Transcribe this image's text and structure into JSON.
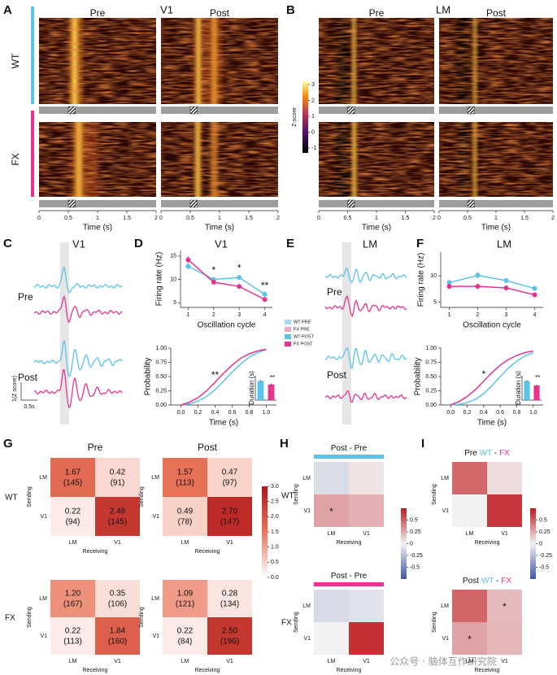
{
  "chart_data": [
    {
      "type": "raster",
      "label": "A",
      "title": "V1",
      "columns": [
        "Pre",
        "Post"
      ],
      "rows": [
        "WT",
        "FX"
      ],
      "row_colors": [
        "#5bc3e8",
        "#e8348f"
      ],
      "xlim": [
        0,
        2
      ],
      "xticks": [
        0,
        0.5,
        1,
        1.5,
        2
      ],
      "xlabel": "Time (s)",
      "colorbar": {
        "label": "Z-score",
        "lim": [
          -1.3,
          3.2
        ],
        "ticks": [
          3,
          2,
          1,
          0,
          -1
        ]
      }
    },
    {
      "type": "raster",
      "label": "B",
      "title": "LM",
      "columns": [
        "Pre",
        "Post"
      ],
      "xlim": [
        0,
        2
      ],
      "xticks": [
        0,
        0.5,
        1,
        1.5,
        2
      ],
      "xlabel": "Time (s)"
    },
    {
      "type": "traces",
      "label": "C",
      "title": "V1",
      "rows": [
        "Pre",
        "Post"
      ],
      "colors": [
        "#5bc3e8",
        "#e8348f"
      ],
      "scalebar": {
        "y_label": "1(Z score)",
        "x_label": "0.5s"
      }
    },
    {
      "type": "line",
      "label": "D",
      "title": "V1",
      "x": [
        1,
        2,
        3,
        4
      ],
      "xlim": [
        0.7,
        4.3
      ],
      "xticks": [
        1,
        2,
        3,
        4
      ],
      "ylim": [
        4,
        16.2
      ],
      "yticks": [
        5,
        10,
        15
      ],
      "xlabel": "Oscillation cycle",
      "ylabel": "Firing rate (Hz)",
      "markers": true,
      "series": [
        {
          "color": "#5bc3e8",
          "values": [
            12.8,
            10.0,
            10.4,
            6.8
          ],
          "errors": [
            0.6,
            0.5,
            0.5,
            0.4
          ]
        },
        {
          "color": "#e8348f",
          "values": [
            14.2,
            9.4,
            8.5,
            5.7
          ],
          "errors": [
            0.7,
            0.4,
            0.4,
            0.3
          ]
        }
      ],
      "annotations": [
        {
          "x": 2,
          "text": "*"
        },
        {
          "x": 3,
          "text": "*"
        },
        {
          "x": 4,
          "text": "**"
        }
      ]
    },
    {
      "type": "line",
      "x": [
        0,
        0.1,
        0.2,
        0.3,
        0.4,
        0.5,
        0.6,
        0.7,
        0.8,
        0.9,
        1
      ],
      "xlim": [
        -0.12,
        1.12
      ],
      "xticks": [
        {
          "value": 0,
          "label": "0.0"
        },
        0.2,
        0.4,
        0.6,
        0.8,
        {
          "value": 1,
          "label": "1.0"
        }
      ],
      "ylim": [
        0,
        1
      ],
      "yticks": [
        {
          "value": 0,
          "label": "0.00"
        },
        0.25,
        {
          "value": 0.5,
          "label": "0.50"
        },
        0.75,
        {
          "value": 1,
          "label": "1.00"
        }
      ],
      "xlabel": "Time (s)",
      "ylabel": "Probability",
      "series": [
        {
          "color": "#5bc3e8",
          "values": [
            0,
            0.02,
            0.07,
            0.15,
            0.27,
            0.42,
            0.58,
            0.72,
            0.84,
            0.92,
            0.97
          ]
        },
        {
          "color": "#e8348f",
          "values": [
            0,
            0.05,
            0.13,
            0.25,
            0.4,
            0.56,
            0.7,
            0.82,
            0.9,
            0.95,
            0.98
          ]
        }
      ],
      "annotations": [
        {
          "x": 0.4,
          "text": "**"
        }
      ],
      "inset": {
        "ylabel": "Duration (s)",
        "values": [
          0.55,
          0.45
        ],
        "errors": [
          0.03,
          0.03
        ],
        "colors": [
          "#5bc3e8",
          "#e8348f"
        ],
        "ylim": [
          0,
          0.7
        ],
        "annotation": "**"
      }
    },
    {
      "type": "legend",
      "entries": [
        {
          "name": "WT PRE",
          "color": "#a9def2"
        },
        {
          "name": "FX PRE",
          "color": "#f2a3cc"
        },
        {
          "name": "WT POST",
          "color": "#5bc3e8"
        },
        {
          "name": "FX POST",
          "color": "#e8348f"
        }
      ]
    },
    {
      "type": "traces",
      "label": "E",
      "title": "LM",
      "rows": [
        "Pre",
        "Post"
      ],
      "colors": [
        "#5bc3e8",
        "#e8348f"
      ]
    },
    {
      "type": "line",
      "label": "F",
      "title": "LM",
      "x": [
        1,
        2,
        3,
        4
      ],
      "xlim": [
        0.7,
        4.3
      ],
      "xticks": [
        1,
        2,
        3,
        4
      ],
      "ylim": [
        4,
        14.5
      ],
      "yticks": [
        5,
        10
      ],
      "xlabel": "Oscillation cycle",
      "ylabel": "Firing rate (Hz)",
      "markers": true,
      "series": [
        {
          "color": "#5bc3e8",
          "values": [
            8.7,
            10.1,
            9.1,
            7.6
          ],
          "errors": [
            0.6,
            0.6,
            0.5,
            0.4
          ]
        },
        {
          "color": "#e8348f",
          "values": [
            8.0,
            8.0,
            7.7,
            6.4
          ],
          "errors": [
            0.5,
            0.5,
            0.4,
            0.3
          ]
        }
      ]
    },
    {
      "type": "line",
      "x": [
        0,
        0.1,
        0.2,
        0.3,
        0.4,
        0.5,
        0.6,
        0.7,
        0.8,
        0.9,
        1
      ],
      "xlim": [
        -0.12,
        1.12
      ],
      "xticks": [
        {
          "value": 0,
          "label": "0.0"
        },
        0.2,
        0.4,
        0.6,
        0.8,
        {
          "value": 1,
          "label": "1.0"
        }
      ],
      "ylim": [
        0,
        1
      ],
      "yticks": [
        {
          "value": 0,
          "label": "0.00"
        },
        0.25,
        {
          "value": 0.5,
          "label": "0.50"
        },
        0.75,
        {
          "value": 1,
          "label": "1.00"
        }
      ],
      "xlabel": "Time (s)",
      "ylabel": "Probability",
      "series": [
        {
          "color": "#5bc3e8",
          "values": [
            0,
            0.01,
            0.04,
            0.1,
            0.2,
            0.34,
            0.5,
            0.65,
            0.77,
            0.86,
            0.92
          ]
        },
        {
          "color": "#e8348f",
          "values": [
            0,
            0.06,
            0.15,
            0.27,
            0.42,
            0.57,
            0.7,
            0.8,
            0.87,
            0.92,
            0.95
          ]
        }
      ],
      "annotations": [
        {
          "x": 0.4,
          "text": "*"
        }
      ],
      "inset": {
        "ylabel": "Duration (s)",
        "values": [
          0.55,
          0.42
        ],
        "errors": [
          0.03,
          0.03
        ],
        "colors": [
          "#5bc3e8",
          "#e8348f"
        ],
        "ylim": [
          0,
          0.7
        ],
        "annotation": "**"
      }
    },
    {
      "type": "heatmap",
      "label": "G",
      "columns": [
        "Pre",
        "Post"
      ],
      "rows": [
        "WT",
        "FX"
      ],
      "row_colors": [
        "#5bc3e8",
        "#e8348f"
      ],
      "categories": [
        "LM",
        "V1"
      ],
      "xlabel": "Receiving",
      "ylabel": "Sending",
      "cmap": [
        "#ffffff",
        "#e9755a",
        "#b2171b"
      ],
      "zlim": [
        0,
        3
      ],
      "colorbar_ticks": [
        {
          "value": 0,
          "label": "0.0"
        },
        0.5,
        {
          "value": 1,
          "label": "1.0"
        },
        1.5,
        {
          "value": 2,
          "label": "2.0"
        },
        2.5,
        {
          "value": 3,
          "label": "3.0"
        }
      ],
      "matrices": [
        [
          {
            "values": [
              [
                1.67,
                0.42
              ],
              [
                0.22,
                2.48
              ]
            ],
            "value_labels": [
              [
                "1.67",
                "0.42"
              ],
              [
                "0.22",
                "2.48"
              ]
            ],
            "counts": [
              [
                145,
                91
              ],
              [
                94,
                145
              ]
            ],
            "count_labels": [
              [
                "(145)",
                "(91)"
              ],
              [
                "(94)",
                "(145)"
              ]
            ]
          },
          {
            "values": [
              [
                1.57,
                0.47
              ],
              [
                0.49,
                2.7
              ]
            ],
            "value_labels": [
              [
                "1.57",
                "0.47"
              ],
              [
                "0.49",
                "2.70"
              ]
            ],
            "counts": [
              [
                113,
                97
              ],
              [
                78,
                147
              ]
            ],
            "count_labels": [
              [
                "(113)",
                "(97)"
              ],
              [
                "(78)",
                "(147)"
              ]
            ]
          }
        ],
        [
          {
            "values": [
              [
                1.2,
                0.35
              ],
              [
                0.22,
                1.84
              ]
            ],
            "value_labels": [
              [
                "1.20",
                "0.35"
              ],
              [
                "0.22",
                "1.84"
              ]
            ],
            "counts": [
              [
                167,
                106
              ],
              [
                113,
                160
              ]
            ],
            "count_labels": [
              [
                "(167)",
                "(106)"
              ],
              [
                "(113)",
                "(160)"
              ]
            ]
          },
          {
            "values": [
              [
                1.09,
                0.28
              ],
              [
                0.22,
                2.5
              ]
            ],
            "value_labels": [
              [
                "1.09",
                "0.28"
              ],
              [
                "0.22",
                "2.50"
              ]
            ],
            "counts": [
              [
                121,
                134
              ],
              [
                84,
                196
              ]
            ],
            "count_labels": [
              [
                "(121)",
                "(134)"
              ],
              [
                "(84)",
                "(196)"
              ]
            ]
          }
        ]
      ]
    },
    {
      "type": "heatmap",
      "label": "H",
      "rows": [
        "WT",
        "FX"
      ],
      "row_colors": [
        "#5bc3e8",
        "#e8348f"
      ],
      "titles": [
        [
          [
            {
              "text": "Post - Pre"
            }
          ]
        ],
        [
          [
            {
              "text": "Post - Pre"
            }
          ]
        ]
      ],
      "title_bars": [
        "#5bc3e8",
        "#e8348f"
      ],
      "categories": [
        "LM",
        "V1"
      ],
      "xlabel": "Receiving",
      "ylabel": "Sending",
      "cmap": [
        "#3d56a6",
        "#f2f2f2",
        "#c0161b"
      ],
      "zlim": [
        -0.75,
        0.75
      ],
      "colorbar_ticks": [
        0.5,
        0.25,
        0,
        -0.25,
        -0.5
      ],
      "matrices": [
        [
          {
            "values": [
              [
                -0.1,
                0.05
              ],
              [
                0.27,
                0.22
              ]
            ],
            "stars": [
              [
                null,
                null
              ],
              [
                "*",
                null
              ]
            ]
          }
        ],
        [
          {
            "values": [
              [
                -0.11,
                -0.07
              ],
              [
                0,
                0.66
              ]
            ]
          }
        ]
      ]
    },
    {
      "type": "heatmap",
      "label": "I",
      "titles": [
        [
          [
            {
              "text": "Pre"
            },
            {
              "text": "WT",
              "color": "#5bc3e8"
            },
            {
              "text": "-"
            },
            {
              "text": "FX",
              "color": "#e8348f"
            }
          ]
        ],
        [
          [
            {
              "text": "Post"
            },
            {
              "text": "WT",
              "color": "#5bc3e8"
            },
            {
              "text": "-"
            },
            {
              "text": "FX",
              "color": "#e8348f"
            }
          ]
        ]
      ],
      "categories": [
        "LM",
        "V1"
      ],
      "xlabel": "Receiving",
      "ylabel": "Sending",
      "cmap": [
        "#3d56a6",
        "#f2f2f2",
        "#c0161b"
      ],
      "zlim": [
        -0.75,
        0.75
      ],
      "colorbar_ticks": [
        0.5,
        0.25,
        0,
        -0.25,
        -0.5
      ],
      "matrices": [
        [
          {
            "values": [
              [
                0.47,
                0.07
              ],
              [
                0,
                0.64
              ]
            ]
          }
        ],
        [
          {
            "values": [
              [
                0.48,
                0.19
              ],
              [
                0.27,
                0.2
              ]
            ],
            "stars": [
              [
                null,
                "*"
              ],
              [
                "*",
                null
              ]
            ]
          }
        ]
      ]
    }
  ],
  "watermark": "公众号 · 脑体互作研究院"
}
